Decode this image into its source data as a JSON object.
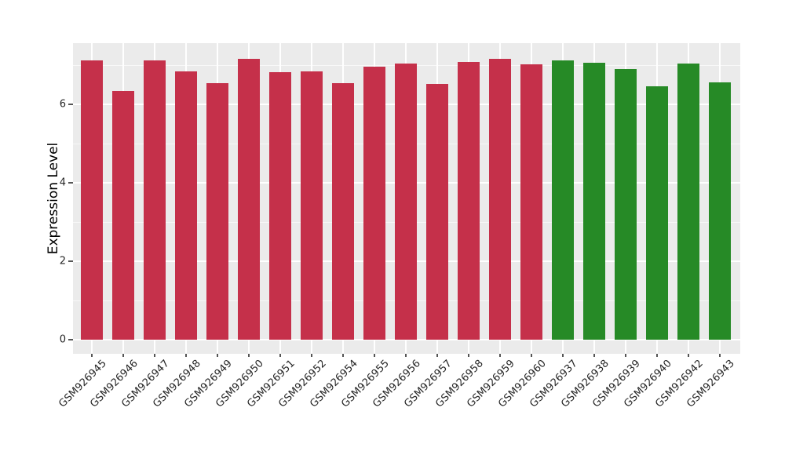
{
  "chart_data": {
    "type": "bar",
    "title": "",
    "xlabel": "",
    "ylabel": "Expression Level",
    "categories": [
      "GSM926945",
      "GSM926946",
      "GSM926947",
      "GSM926948",
      "GSM926949",
      "GSM926950",
      "GSM926951",
      "GSM926952",
      "GSM926954",
      "GSM926955",
      "GSM926956",
      "GSM926957",
      "GSM926958",
      "GSM926959",
      "GSM926960",
      "GSM926937",
      "GSM926938",
      "GSM926939",
      "GSM926940",
      "GSM926942",
      "GSM926943"
    ],
    "values": [
      7.12,
      6.33,
      7.12,
      6.84,
      6.54,
      7.16,
      6.82,
      6.84,
      6.53,
      6.96,
      7.04,
      6.51,
      7.07,
      7.16,
      7.01,
      7.11,
      7.05,
      6.9,
      6.46,
      7.04,
      6.56
    ],
    "groups": [
      0,
      0,
      0,
      0,
      0,
      0,
      0,
      0,
      0,
      0,
      0,
      0,
      0,
      0,
      0,
      1,
      1,
      1,
      1,
      1,
      1
    ],
    "group_colors": [
      "#C5304A",
      "#268A26"
    ],
    "yticks": [
      0,
      2,
      4,
      6
    ],
    "y_minor_gridlines": [
      1,
      3,
      5,
      7
    ],
    "ylim": [
      -0.36,
      7.56
    ],
    "grid": true,
    "legend": false
  },
  "style": {
    "panel_background": "#ebebeb",
    "grid_major_color": "#ffffff",
    "grid_minor_color": "rgba(255,255,255,0.65)",
    "tick_mark_color": "#555555",
    "tick_label_color": "#262626",
    "axis_label_color": "#000000",
    "figure_background": "#ffffff"
  }
}
